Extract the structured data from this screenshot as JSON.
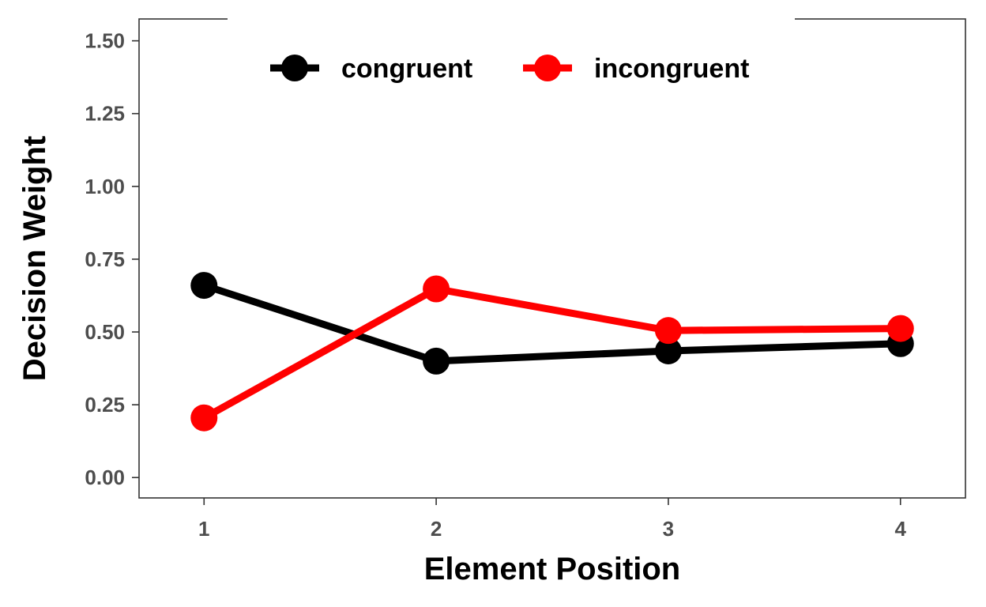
{
  "chart_data": {
    "type": "line",
    "x": [
      1,
      2,
      3,
      4
    ],
    "xlabel": "Element Position",
    "ylabel": "Decision Weight",
    "xlim": [
      0.72,
      4.28
    ],
    "ylim": [
      -0.07,
      1.575
    ],
    "xticks": [
      "1",
      "2",
      "3",
      "4"
    ],
    "yticks": [
      "0.00",
      "0.25",
      "0.50",
      "0.75",
      "1.00",
      "1.25",
      "1.50"
    ],
    "grid": false,
    "legend_position": "top-center",
    "series": [
      {
        "name": "congruent",
        "color": "#000000",
        "values": [
          0.66,
          0.4,
          0.435,
          0.46
        ]
      },
      {
        "name": "incongruent",
        "color": "#ff0000",
        "values": [
          0.205,
          0.648,
          0.505,
          0.512
        ]
      }
    ]
  }
}
